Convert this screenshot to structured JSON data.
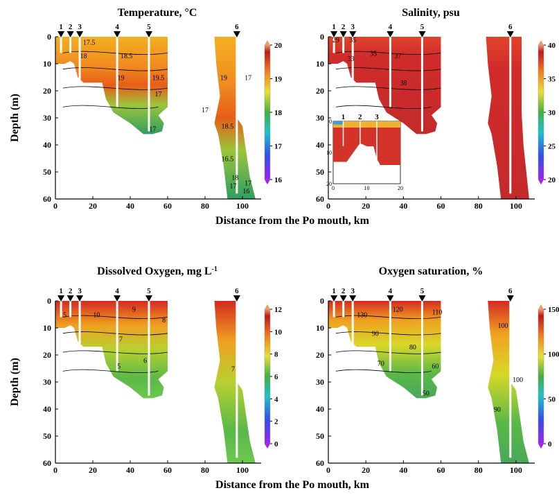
{
  "chart_data": [
    {
      "type": "heatmap",
      "title": "Temperature, °C",
      "xlabel": "",
      "ylabel": "Depth (m)",
      "xlim": [
        0,
        110
      ],
      "ylim": [
        60,
        0
      ],
      "xticks": [
        "0",
        "20",
        "40",
        "60",
        "80",
        "100"
      ],
      "yticks": [
        "0",
        "10",
        "20",
        "30",
        "40",
        "50",
        "60"
      ],
      "colorbar": {
        "ticks": [
          "16",
          "17",
          "18",
          "19",
          "20"
        ],
        "min": 16,
        "max": 20
      },
      "stations": [
        {
          "label": "1",
          "x": 3,
          "depth": 6
        },
        {
          "label": "2",
          "x": 8,
          "depth": 6
        },
        {
          "label": "3",
          "x": 13,
          "depth": 16
        },
        {
          "label": "4",
          "x": 33,
          "depth": 26
        },
        {
          "label": "5",
          "x": 50,
          "depth": 35
        },
        {
          "label": "6",
          "x": 97,
          "depth": 58
        }
      ],
      "contour_labels": [
        {
          "text": "17.5",
          "x": 18,
          "y": 3
        },
        {
          "text": "18",
          "x": 15,
          "y": 8
        },
        {
          "text": "18.5",
          "x": 38,
          "y": 8
        },
        {
          "text": "19",
          "x": 35,
          "y": 16
        },
        {
          "text": "19.5",
          "x": 55,
          "y": 16
        },
        {
          "text": "17",
          "x": 55,
          "y": 22
        },
        {
          "text": "17",
          "x": 52,
          "y": 35
        },
        {
          "text": "17",
          "x": 80,
          "y": 28
        },
        {
          "text": "19",
          "x": 90,
          "y": 16
        },
        {
          "text": "17",
          "x": 103,
          "y": 16
        },
        {
          "text": "18.5",
          "x": 92,
          "y": 34
        },
        {
          "text": "18",
          "x": 96,
          "y": 53
        },
        {
          "text": "17",
          "x": 95,
          "y": 56
        },
        {
          "text": "17",
          "x": 103,
          "y": 55
        },
        {
          "text": "16",
          "x": 102,
          "y": 58
        },
        {
          "text": "16.5",
          "x": 92,
          "y": 46
        }
      ]
    },
    {
      "type": "heatmap",
      "title": "Salinity, psu",
      "xlabel": "Distance from the Po mouth, km",
      "ylabel": "",
      "xlim": [
        0,
        110
      ],
      "ylim": [
        60,
        0
      ],
      "xticks": [
        "0",
        "20",
        "40",
        "60",
        "80",
        "100"
      ],
      "yticks": [
        "0",
        "10",
        "20",
        "30",
        "40",
        "50",
        "60"
      ],
      "colorbar": {
        "ticks": [
          "20",
          "25",
          "30",
          "35",
          "40"
        ],
        "min": 20,
        "max": 40
      },
      "stations": [
        {
          "label": "1",
          "x": 3,
          "depth": 6
        },
        {
          "label": "2",
          "x": 8,
          "depth": 6
        },
        {
          "label": "3",
          "x": 13,
          "depth": 16
        },
        {
          "label": "4",
          "x": 33,
          "depth": 26
        },
        {
          "label": "5",
          "x": 50,
          "depth": 35
        },
        {
          "label": "6",
          "x": 97,
          "depth": 58
        }
      ],
      "contour_labels": [
        {
          "text": "29",
          "x": 4,
          "y": 2
        },
        {
          "text": "35",
          "x": 13,
          "y": 2
        },
        {
          "text": "35",
          "x": 24,
          "y": 7
        },
        {
          "text": "37",
          "x": 37,
          "y": 8
        },
        {
          "text": "33",
          "x": 12,
          "y": 9
        },
        {
          "text": "38",
          "x": 40,
          "y": 18
        }
      ],
      "inset": {
        "xticks": [
          "0",
          "10",
          "20"
        ],
        "yticks": [
          "0",
          "10",
          "20"
        ],
        "stations": [
          {
            "label": "1",
            "x": 3
          },
          {
            "label": "2",
            "x": 8
          },
          {
            "label": "3",
            "x": 13
          }
        ]
      }
    },
    {
      "type": "heatmap",
      "title": "Dissolved Oxygen, mg L",
      "title_sup": "-1",
      "xlabel": "",
      "ylabel": "Depth (m)",
      "xlim": [
        0,
        110
      ],
      "ylim": [
        60,
        0
      ],
      "xticks": [
        "0",
        "20",
        "40",
        "60",
        "80",
        "100"
      ],
      "yticks": [
        "0",
        "10",
        "20",
        "30",
        "40",
        "50",
        "60"
      ],
      "colorbar": {
        "ticks": [
          "0",
          "2",
          "4",
          "6",
          "8",
          "10",
          "12"
        ],
        "min": 0,
        "max": 12
      },
      "stations": [
        {
          "label": "1",
          "x": 3,
          "depth": 6
        },
        {
          "label": "2",
          "x": 8,
          "depth": 6
        },
        {
          "label": "3",
          "x": 13,
          "depth": 16
        },
        {
          "label": "4",
          "x": 33,
          "depth": 26
        },
        {
          "label": "5",
          "x": 50,
          "depth": 35
        },
        {
          "label": "6",
          "x": 97,
          "depth": 58
        }
      ],
      "contour_labels": [
        {
          "text": "10",
          "x": 22,
          "y": 6
        },
        {
          "text": "9",
          "x": 42,
          "y": 4
        },
        {
          "text": "8",
          "x": 58,
          "y": 8
        },
        {
          "text": "7",
          "x": 35,
          "y": 15
        },
        {
          "text": "6",
          "x": 48,
          "y": 23
        },
        {
          "text": "5",
          "x": 34,
          "y": 25
        },
        {
          "text": "5",
          "x": 5,
          "y": 6
        },
        {
          "text": "7",
          "x": 95,
          "y": 26
        }
      ]
    },
    {
      "type": "heatmap",
      "title": "Oxygen saturation, %",
      "xlabel": "Distance from the Po mouth, km",
      "ylabel": "",
      "xlim": [
        0,
        110
      ],
      "ylim": [
        60,
        0
      ],
      "xticks": [
        "0",
        "20",
        "40",
        "60",
        "80",
        "100"
      ],
      "yticks": [
        "0",
        "10",
        "20",
        "30",
        "40",
        "50",
        "60"
      ],
      "colorbar": {
        "ticks": [
          "0",
          "50",
          "100",
          "150"
        ],
        "min": 0,
        "max": 150
      },
      "stations": [
        {
          "label": "1",
          "x": 3,
          "depth": 6
        },
        {
          "label": "2",
          "x": 8,
          "depth": 6
        },
        {
          "label": "3",
          "x": 13,
          "depth": 16
        },
        {
          "label": "4",
          "x": 33,
          "depth": 26
        },
        {
          "label": "5",
          "x": 50,
          "depth": 35
        },
        {
          "label": "6",
          "x": 97,
          "depth": 58
        }
      ],
      "contour_labels": [
        {
          "text": "130",
          "x": 18,
          "y": 6
        },
        {
          "text": "120",
          "x": 37,
          "y": 4
        },
        {
          "text": "110",
          "x": 58,
          "y": 5
        },
        {
          "text": "90",
          "x": 25,
          "y": 13
        },
        {
          "text": "80",
          "x": 45,
          "y": 18
        },
        {
          "text": "70",
          "x": 28,
          "y": 24
        },
        {
          "text": "60",
          "x": 57,
          "y": 25
        },
        {
          "text": "50",
          "x": 52,
          "y": 35
        },
        {
          "text": "100",
          "x": 93,
          "y": 10
        },
        {
          "text": "100",
          "x": 101,
          "y": 30
        },
        {
          "text": "90",
          "x": 90,
          "y": 41
        }
      ]
    }
  ]
}
